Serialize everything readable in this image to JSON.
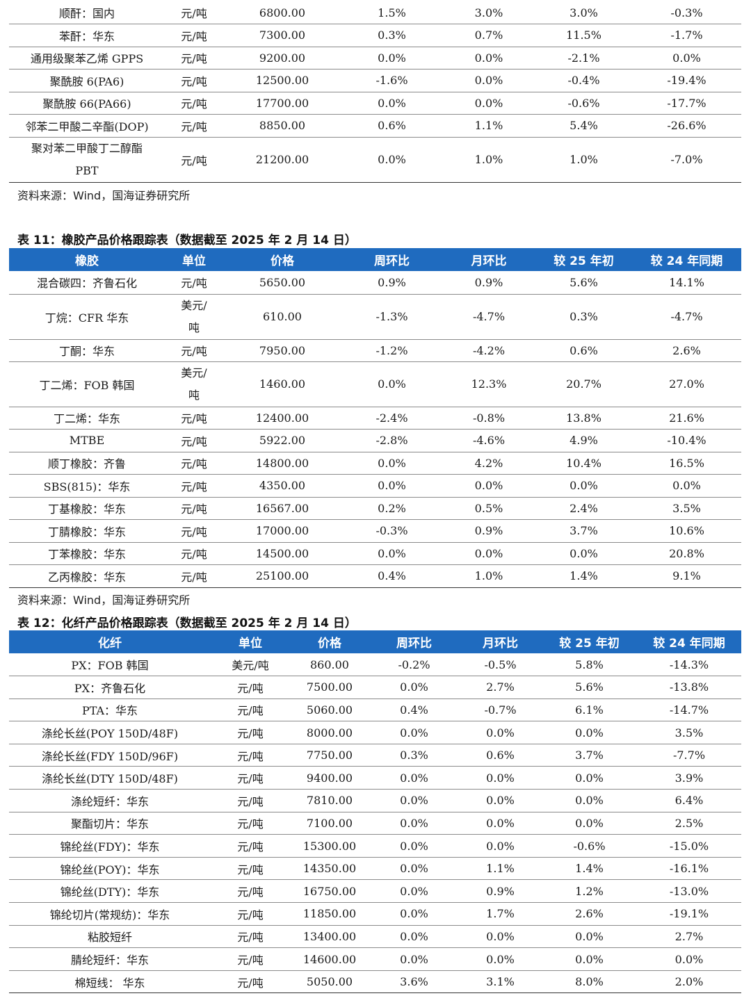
{
  "table_top": {
    "rows": [
      [
        "顺酐：国内",
        "元/吨",
        "6800.00",
        "1.5%",
        "3.0%",
        "3.0%",
        "-0.3%"
      ],
      [
        "苯酐：华东",
        "元/吨",
        "7300.00",
        "0.3%",
        "0.7%",
        "11.5%",
        "-1.7%"
      ],
      [
        "通用级聚苯乙烯 GPPS",
        "元/吨",
        "9200.00",
        "0.0%",
        "0.0%",
        "-2.1%",
        "0.0%"
      ],
      [
        "聚酰胺 6(PA6)",
        "元/吨",
        "12500.00",
        "-1.6%",
        "0.0%",
        "-0.4%",
        "-19.4%"
      ],
      [
        "聚酰胺 66(PA66)",
        "元/吨",
        "17700.00",
        "0.0%",
        "0.0%",
        "-0.6%",
        "-17.7%"
      ],
      [
        "邻苯二甲酸二辛酯(DOP)",
        "元/吨",
        "8850.00",
        "0.6%",
        "1.1%",
        "5.4%",
        "-26.6%"
      ],
      [
        "聚对苯二甲酸丁二醇酯 PBT",
        "元/吨",
        "21200.00",
        "0.0%",
        "1.0%",
        "1.0%",
        "-7.0%"
      ]
    ],
    "source": "资料来源：Wind，国海证券研究所"
  },
  "table11": {
    "caption": "表 11：橡胶产品价格跟踪表（数据截至 2025 年 2 月 14 日）",
    "headers": [
      "橡胶",
      "单位",
      "价格",
      "周环比",
      "月环比",
      "较 25 年初",
      "较 24 年同期"
    ],
    "rows": [
      [
        "混合碳四：齐鲁石化",
        "元/吨",
        "5650.00",
        "0.9%",
        "0.9%",
        "5.6%",
        "14.1%"
      ],
      [
        "丁烷：CFR 华东",
        "美元/吨",
        "610.00",
        "-1.3%",
        "-4.7%",
        "0.3%",
        "-4.7%"
      ],
      [
        "丁酮：华东",
        "元/吨",
        "7950.00",
        "-1.2%",
        "-4.2%",
        "0.6%",
        "2.6%"
      ],
      [
        "丁二烯：FOB 韩国",
        "美元/吨",
        "1460.00",
        "0.0%",
        "12.3%",
        "20.7%",
        "27.0%"
      ],
      [
        "丁二烯：华东",
        "元/吨",
        "12400.00",
        "-2.4%",
        "-0.8%",
        "13.8%",
        "21.6%"
      ],
      [
        "MTBE",
        "元/吨",
        "5922.00",
        "-2.8%",
        "-4.6%",
        "4.9%",
        "-10.4%"
      ],
      [
        "顺丁橡胶：齐鲁",
        "元/吨",
        "14800.00",
        "0.0%",
        "4.2%",
        "10.4%",
        "16.5%"
      ],
      [
        "SBS(815)：华东",
        "元/吨",
        "4350.00",
        "0.0%",
        "0.0%",
        "0.0%",
        "0.0%"
      ],
      [
        "丁基橡胶：华东",
        "元/吨",
        "16567.00",
        "0.2%",
        "0.5%",
        "2.4%",
        "3.5%"
      ],
      [
        "丁腈橡胶：华东",
        "元/吨",
        "17000.00",
        "-0.3%",
        "0.9%",
        "3.7%",
        "10.6%"
      ],
      [
        "丁苯橡胶：华东",
        "元/吨",
        "14500.00",
        "0.0%",
        "0.0%",
        "0.0%",
        "20.8%"
      ],
      [
        "乙丙橡胶：华东",
        "元/吨",
        "25100.00",
        "0.4%",
        "1.0%",
        "1.4%",
        "9.1%"
      ]
    ],
    "source": "资料来源：Wind，国海证券研究所"
  },
  "table12": {
    "caption": "表 12：化纤产品价格跟踪表（数据截至 2025 年 2 月 14 日）",
    "headers": [
      "化纤",
      "单位",
      "价格",
      "周环比",
      "月环比",
      "较 25 年初",
      "较 24 年同期"
    ],
    "rows": [
      [
        "PX：FOB 韩国",
        "美元/吨",
        "860.00",
        "-0.2%",
        "-0.5%",
        "5.8%",
        "-14.3%"
      ],
      [
        "PX：齐鲁石化",
        "元/吨",
        "7500.00",
        "0.0%",
        "2.7%",
        "5.6%",
        "-13.8%"
      ],
      [
        "PTA：华东",
        "元/吨",
        "5060.00",
        "0.4%",
        "-0.7%",
        "6.1%",
        "-14.7%"
      ],
      [
        "涤纶长丝(POY 150D/48F)",
        "元/吨",
        "8000.00",
        "0.0%",
        "0.0%",
        "0.0%",
        "3.5%"
      ],
      [
        "涤纶长丝(FDY 150D/96F)",
        "元/吨",
        "7750.00",
        "0.3%",
        "0.6%",
        "3.7%",
        "-7.7%"
      ],
      [
        "涤纶长丝(DTY 150D/48F)",
        "元/吨",
        "9400.00",
        "0.0%",
        "0.0%",
        "0.0%",
        "3.9%"
      ],
      [
        "涤纶短纤：华东",
        "元/吨",
        "7810.00",
        "0.0%",
        "0.0%",
        "0.0%",
        "6.4%"
      ],
      [
        "聚酯切片：华东",
        "元/吨",
        "7100.00",
        "0.0%",
        "0.0%",
        "0.0%",
        "2.5%"
      ],
      [
        "锦纶丝(FDY)：华东",
        "元/吨",
        "15300.00",
        "0.0%",
        "0.0%",
        "-0.6%",
        "-15.0%"
      ],
      [
        "锦纶丝(POY)：华东",
        "元/吨",
        "14350.00",
        "0.0%",
        "1.1%",
        "1.4%",
        "-16.1%"
      ],
      [
        "锦纶丝(DTY)：华东",
        "元/吨",
        "16750.00",
        "0.0%",
        "0.9%",
        "1.2%",
        "-13.0%"
      ],
      [
        "锦纶切片(常规纺)：华东",
        "元/吨",
        "11850.00",
        "0.0%",
        "1.7%",
        "2.6%",
        "-19.1%"
      ],
      [
        "粘胶短纤",
        "元/吨",
        "13400.00",
        "0.0%",
        "0.0%",
        "0.0%",
        "2.7%"
      ],
      [
        "腈纶短纤：华东",
        "元/吨",
        "14600.00",
        "0.0%",
        "0.0%",
        "0.0%",
        "0.0%"
      ],
      [
        "棉短线： 华东",
        "元/吨",
        "5050.00",
        "3.6%",
        "3.1%",
        "8.0%",
        "2.0%"
      ]
    ]
  },
  "colors": {
    "header_bg": "#1f6bbf",
    "header_text": "#ffffff"
  }
}
